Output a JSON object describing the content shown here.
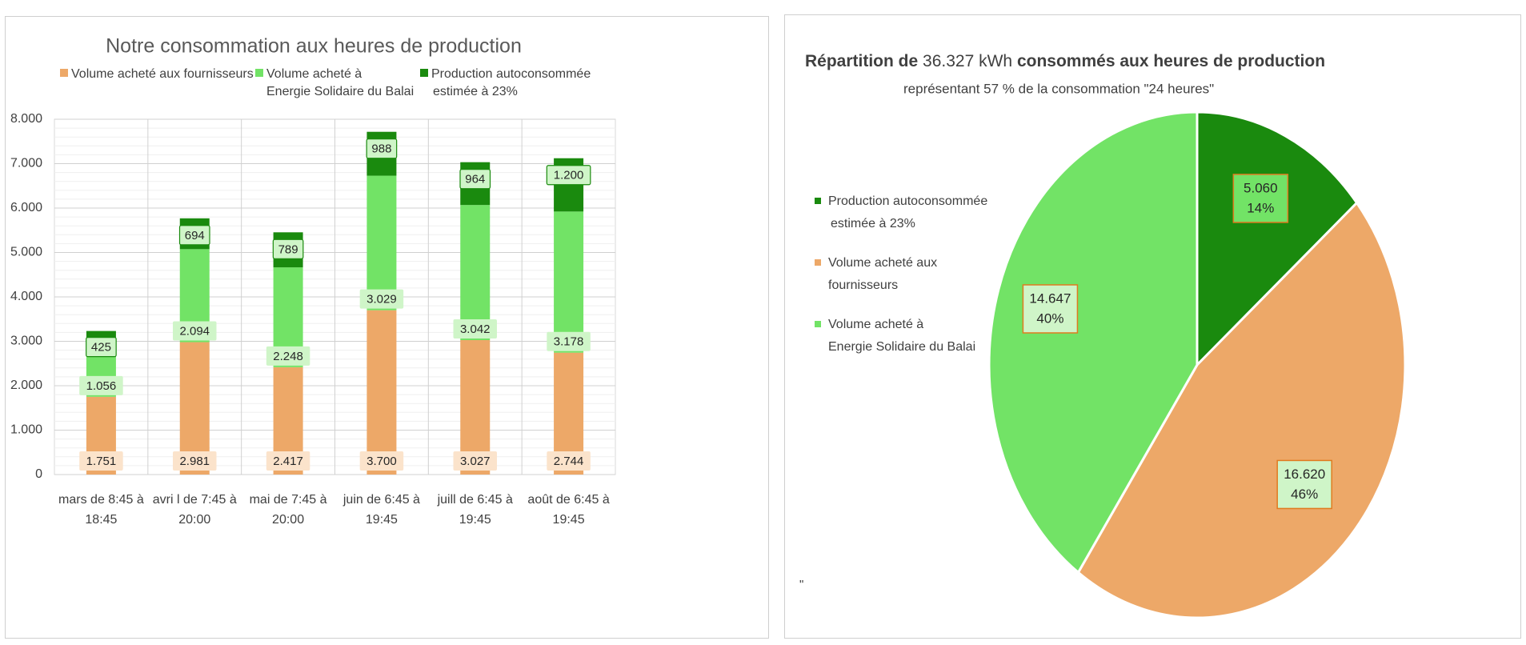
{
  "chart_data": [
    {
      "type": "bar",
      "stacked": true,
      "title": "Notre consommation aux heures de production",
      "categories": [
        [
          "mars de 8:45 à",
          "18:45"
        ],
        [
          "avri l de 7:45 à",
          "20:00"
        ],
        [
          "mai  de 7:45 à",
          "20:00"
        ],
        [
          "juin de 6:45 à",
          "19:45"
        ],
        [
          "juill de 6:45 à",
          "19:45"
        ],
        [
          "août de 6:45 à",
          "19:45"
        ]
      ],
      "series": [
        {
          "name": [
            "Volume acheté aux fournisseurs"
          ],
          "color": "#EDA868",
          "values": [
            1751,
            2981,
            2417,
            3700,
            3027,
            2744
          ],
          "labels": [
            "1.751",
            "2.981",
            "2.417",
            "3.700",
            "3.027",
            "2.744"
          ],
          "label_bg": "#FBE3CB"
        },
        {
          "name": [
            "Volume acheté à",
            "Energie Solidaire du Balai"
          ],
          "color": "#72E366",
          "values": [
            1056,
            2094,
            2248,
            3029,
            3042,
            3178
          ],
          "labels": [
            "1.056",
            "2.094",
            "2.248",
            "3.029",
            "3.042",
            "3.178"
          ],
          "label_bg": "#CFF5C8"
        },
        {
          "name": [
            "Production autoconsommée",
            "estimée à 23%"
          ],
          "color": "#1A8A0E",
          "values": [
            425,
            694,
            789,
            988,
            964,
            1200
          ],
          "labels": [
            "425",
            "694",
            "789",
            "988",
            "964",
            "1.200"
          ],
          "label_bg": "#CFF5C8"
        }
      ],
      "yticks": [
        "0",
        "1.000",
        "2.000",
        "3.000",
        "4.000",
        "5.000",
        "6.000",
        "7.000",
        "8.000"
      ],
      "ylim": [
        0,
        8000
      ],
      "grid": true,
      "legend": "top"
    },
    {
      "type": "pie",
      "title_bold_1": "Répartition de",
      "title_regular": "36.327 kWh",
      "title_bold_2": "consommés aux heures de production",
      "subtitle": "représentant 57 % de la consommation \"24 heures\"",
      "note": "\"",
      "legend": "left",
      "slices": [
        {
          "name": [
            "Production autoconsommée",
            "estimée à 23%"
          ],
          "value": 5060,
          "value_label": "5.060",
          "percent_label": "14%",
          "color": "#1A8A0E"
        },
        {
          "name": [
            "Volume acheté aux",
            "fournisseurs"
          ],
          "value": 16620,
          "value_label": "16.620",
          "percent_label": "46%",
          "color": "#EDA868"
        },
        {
          "name": [
            "Volume acheté à",
            "Energie Solidaire du Balai"
          ],
          "value": 14647,
          "value_label": "14.647",
          "percent_label": "40%",
          "color": "#72E366"
        }
      ]
    }
  ]
}
